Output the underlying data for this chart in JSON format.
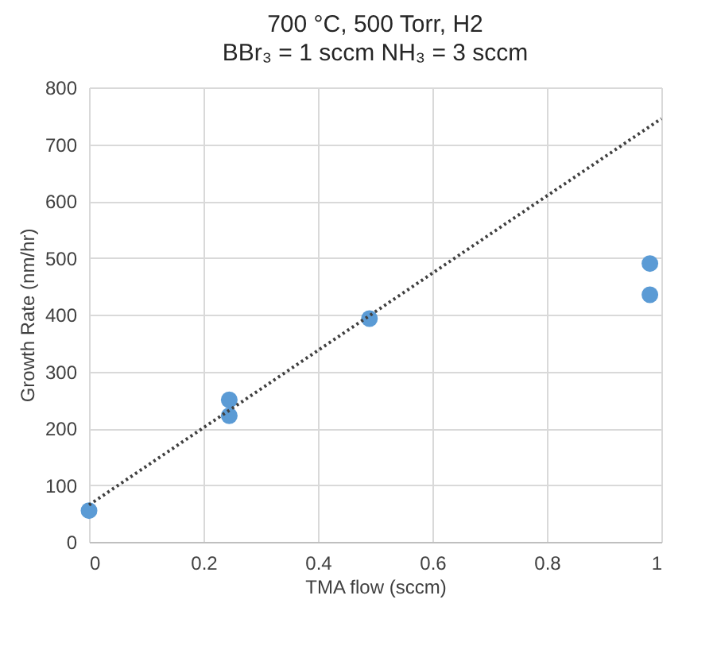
{
  "chart_data": {
    "type": "scatter",
    "title": "700 °C, 500 Torr, H2",
    "subtitle": "BBr₃ = 1 sccm NH₃ = 3 sccm",
    "xlabel": "TMA flow (sccm)",
    "ylabel": "Growth Rate (nm/hr)",
    "xlim": [
      0,
      1
    ],
    "xticks": [
      0,
      0.2,
      0.4,
      0.6,
      0.8,
      1
    ],
    "ylim": [
      0,
      800
    ],
    "yticks": [
      0,
      100,
      200,
      300,
      400,
      500,
      600,
      700,
      800
    ],
    "grid": true,
    "marker": "circle",
    "series": [
      {
        "type": "scatter",
        "color": "#5b9bd5",
        "x": [
          0,
          0.245,
          0.245,
          0.49,
          0.98,
          0.98
        ],
        "values": [
          55,
          250,
          222,
          393,
          490,
          435
        ]
      },
      {
        "type": "line",
        "color": "#404040",
        "line_style": "dotted",
        "marker": "none",
        "x": [
          0,
          1
        ],
        "values": [
          65,
          745
        ]
      }
    ]
  }
}
